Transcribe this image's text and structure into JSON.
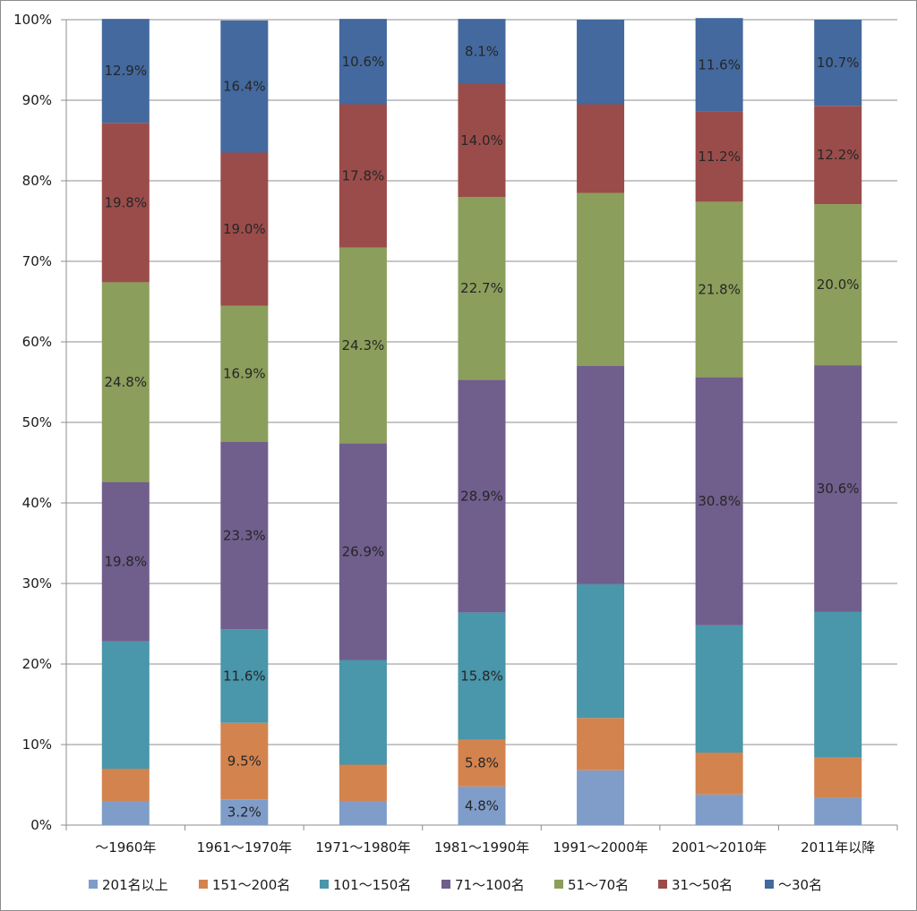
{
  "chart_data": {
    "type": "bar",
    "stacked": true,
    "percent": true,
    "categories": [
      "～1960年",
      "1961～1970年",
      "1971～1980年",
      "1981～1990年",
      "1991～2000年",
      "2001～2010年",
      "2011年以降"
    ],
    "ylim": [
      0,
      100
    ],
    "yticks": [
      "0%",
      "10%",
      "20%",
      "30%",
      "40%",
      "50%",
      "60%",
      "70%",
      "80%",
      "90%",
      "100%"
    ],
    "grid": true,
    "legend_position": "bottom",
    "series": [
      {
        "name": "201名以上",
        "color": "#7F9DC8",
        "values": [
          3.0,
          3.2,
          3.0,
          4.8,
          6.8,
          3.8,
          3.4
        ],
        "labels": [
          null,
          "3.2%",
          null,
          "4.8%",
          null,
          null,
          null
        ]
      },
      {
        "name": "151～200名",
        "color": "#D3834E",
        "values": [
          4.0,
          9.5,
          4.5,
          5.8,
          6.5,
          5.2,
          5.0
        ],
        "labels": [
          null,
          "9.5%",
          null,
          "5.8%",
          null,
          null,
          null
        ]
      },
      {
        "name": "101～150名",
        "color": "#4A96AA",
        "values": [
          15.8,
          11.6,
          13.0,
          15.8,
          16.6,
          15.8,
          18.1
        ],
        "labels": [
          null,
          "11.6%",
          null,
          "15.8%",
          null,
          null,
          null
        ]
      },
      {
        "name": "71～100名",
        "color": "#705E8C",
        "values": [
          19.8,
          23.3,
          26.9,
          28.9,
          27.1,
          30.8,
          30.6
        ],
        "labels": [
          "19.8%",
          "23.3%",
          "26.9%",
          "28.9%",
          null,
          "30.8%",
          "30.6%"
        ]
      },
      {
        "name": "51～70名",
        "color": "#8C9E5C",
        "values": [
          24.8,
          16.9,
          24.3,
          22.7,
          21.5,
          21.8,
          20.0
        ],
        "labels": [
          "24.8%",
          "16.9%",
          "24.3%",
          "22.7%",
          null,
          "21.8%",
          "20.0%"
        ]
      },
      {
        "name": "31～50名",
        "color": "#9A4C4A",
        "values": [
          19.8,
          19.0,
          17.8,
          14.0,
          11.0,
          11.2,
          12.2
        ],
        "labels": [
          "19.8%",
          "19.0%",
          "17.8%",
          "14.0%",
          null,
          "11.2%",
          "12.2%"
        ]
      },
      {
        "name": "～30名",
        "color": "#43699E",
        "values": [
          12.9,
          16.4,
          10.6,
          8.1,
          10.5,
          11.6,
          10.7
        ],
        "labels": [
          "12.9%",
          "16.4%",
          "10.6%",
          "8.1%",
          null,
          "11.6%",
          "10.7%"
        ]
      }
    ]
  }
}
